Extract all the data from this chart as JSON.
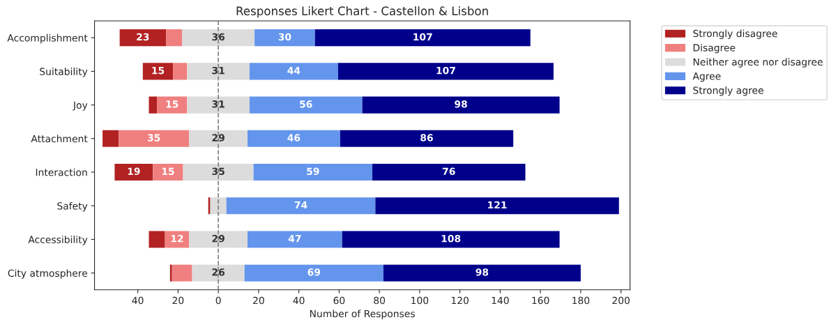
{
  "chart_data": {
    "type": "bar",
    "orientation": "horizontal",
    "title": "Responses Likert Chart - Castellon & Lisbon",
    "xlabel": "Number of Responses",
    "categories": [
      "Accomplishment",
      "Suitability",
      "Joy",
      "Attachment",
      "Interaction",
      "Safety",
      "Accessibility",
      "City atmosphere"
    ],
    "series": [
      {
        "name": "Strongly disagree",
        "color": "#b22222",
        "values": [
          23,
          15,
          4,
          8,
          19,
          1,
          8,
          1
        ],
        "base": [
          -49,
          -37.5,
          -34.5,
          -57.5,
          -51.5,
          -5,
          -34.5,
          -24
        ],
        "value_labels": [
          "23",
          "15",
          null,
          null,
          "19",
          null,
          null,
          null
        ]
      },
      {
        "name": "Disagree",
        "color": "#f08080",
        "values": [
          8,
          7,
          15,
          35,
          15,
          null,
          12,
          10
        ],
        "base": [
          -26,
          -22.5,
          -30.5,
          -49.5,
          -32.5,
          null,
          -26.5,
          -23
        ],
        "value_labels": [
          null,
          null,
          "15",
          "35",
          "15",
          null,
          "12",
          null
        ]
      },
      {
        "name": "Neither agree nor disagree",
        "color": "#dcdcdc",
        "values": [
          36,
          31,
          31,
          29,
          35,
          8,
          29,
          26
        ],
        "base": [
          -18,
          -15.5,
          -15.5,
          -14.5,
          -17.5,
          -4,
          -14.5,
          -13
        ],
        "value_labels": [
          "36",
          "31",
          "31",
          "29",
          "35",
          null,
          "29",
          "26"
        ]
      },
      {
        "name": "Agree",
        "color": "#6495ed",
        "values": [
          30,
          44,
          56,
          46,
          59,
          74,
          47,
          69
        ],
        "base": [
          18,
          15.5,
          15.5,
          14.5,
          17.5,
          4,
          14.5,
          13
        ],
        "value_labels": [
          "30",
          "44",
          "56",
          "46",
          "59",
          "74",
          "47",
          "69"
        ]
      },
      {
        "name": "Strongly agree",
        "color": "#00008b",
        "values": [
          107,
          107,
          98,
          86,
          76,
          121,
          108,
          98
        ],
        "base": [
          48,
          59.5,
          71.5,
          60.5,
          76.5,
          78,
          61.5,
          82
        ],
        "value_labels": [
          "107",
          "107",
          "98",
          "86",
          "76",
          "121",
          "108",
          "98"
        ]
      }
    ],
    "xlim": [
      -61.5,
      204.5
    ],
    "xticks": [
      {
        "value": -40,
        "label": "40"
      },
      {
        "value": -20,
        "label": "20"
      },
      0,
      20,
      40,
      60,
      80,
      100,
      120,
      140,
      160,
      180,
      200
    ],
    "ref_lines": [
      {
        "axis": "x",
        "value": 0,
        "color": "#808080",
        "line_style": "dashed"
      }
    ],
    "grid": false,
    "legend": "top right"
  }
}
